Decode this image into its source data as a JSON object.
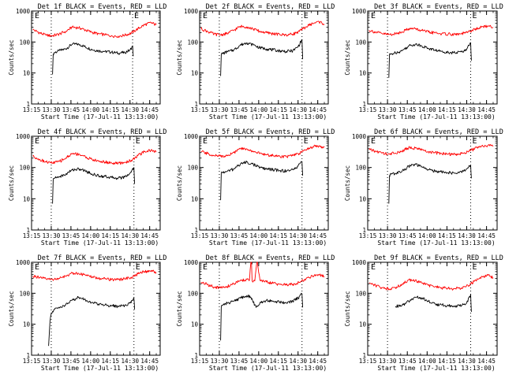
{
  "page": {
    "start_time_label": "Start Time (17-Jul-11 13:13:00)",
    "ylabel": "Counts/sec",
    "marker_label": "E",
    "x_tick_labels": [
      "13:15",
      "13:30",
      "13:45",
      "14:00",
      "14:15",
      "14:30",
      "14:45"
    ],
    "y_tick_labels": [
      "1",
      "10",
      "100",
      "1000"
    ]
  },
  "colors": {
    "events": "#000000",
    "lld": "#ff0000",
    "axis": "#000000",
    "background": "#ffffff"
  },
  "chart_data": [
    {
      "type": "line",
      "title": "Det 1f BLACK = Events, RED = LLD",
      "xlabel": "Start Time (17-Jul-11 13:13:00)",
      "ylabel": "Counts/sec",
      "x_unit": "minutes after 13:13",
      "xlim": [
        2,
        100
      ],
      "ylim": [
        1,
        1000
      ],
      "yscale": "log",
      "markers": [
        {
          "x": 17,
          "label": ""
        },
        {
          "x": 79,
          "label": "E"
        }
      ],
      "series": [
        {
          "name": "Events",
          "color": "#000000",
          "x": [
            18,
            18.5,
            19,
            23,
            28,
            33,
            38,
            43,
            48,
            53,
            58,
            63,
            68,
            73,
            77,
            79,
            79.5
          ],
          "values": [
            9,
            40,
            45,
            52,
            60,
            85,
            85,
            70,
            57,
            52,
            50,
            47,
            44,
            46,
            55,
            75,
            35
          ]
        },
        {
          "name": "LLD",
          "color": "#ff0000",
          "x": [
            3,
            8,
            13,
            18,
            23,
            28,
            33,
            38,
            43,
            48,
            53,
            58,
            63,
            68,
            73,
            78,
            83,
            88,
            93,
            97
          ],
          "values": [
            250,
            200,
            165,
            160,
            180,
            220,
            300,
            290,
            245,
            205,
            185,
            170,
            160,
            155,
            165,
            195,
            270,
            360,
            420,
            360
          ]
        }
      ]
    },
    {
      "type": "line",
      "title": "Det 2f BLACK = Events, RED = LLD",
      "xlabel": "Start Time (17-Jul-11 13:13:00)",
      "ylabel": "Counts/sec",
      "x_unit": "minutes after 13:13",
      "xlim": [
        2,
        100
      ],
      "ylim": [
        1,
        1000
      ],
      "yscale": "log",
      "markers": [
        {
          "x": 17,
          "label": ""
        },
        {
          "x": 80,
          "label": "E"
        }
      ],
      "series": [
        {
          "name": "Events",
          "color": "#000000",
          "x": [
            18,
            18.5,
            19,
            23,
            28,
            33,
            38,
            43,
            48,
            53,
            58,
            63,
            68,
            73,
            77,
            80,
            80.5
          ],
          "values": [
            8,
            38,
            42,
            48,
            55,
            80,
            95,
            80,
            65,
            60,
            56,
            52,
            50,
            52,
            70,
            120,
            28
          ]
        },
        {
          "name": "LLD",
          "color": "#ff0000",
          "x": [
            3,
            8,
            13,
            18,
            23,
            28,
            33,
            38,
            43,
            48,
            53,
            58,
            63,
            68,
            73,
            78,
            83,
            88,
            93,
            97
          ],
          "values": [
            270,
            220,
            180,
            170,
            190,
            240,
            320,
            310,
            260,
            220,
            200,
            185,
            175,
            170,
            180,
            220,
            310,
            400,
            450,
            380
          ]
        }
      ]
    },
    {
      "type": "line",
      "title": "Det 3f BLACK = Events, RED = LLD",
      "xlabel": "Start Time (17-Jul-11 13:13:00)",
      "ylabel": "Counts/sec",
      "x_unit": "minutes after 13:13",
      "xlim": [
        2,
        100
      ],
      "ylim": [
        1,
        1000
      ],
      "yscale": "log",
      "markers": [
        {
          "x": 17,
          "label": ""
        },
        {
          "x": 80,
          "label": "E"
        }
      ],
      "series": [
        {
          "name": "Events",
          "color": "#000000",
          "x": [
            18,
            18.5,
            19,
            23,
            28,
            33,
            38,
            43,
            48,
            53,
            58,
            63,
            68,
            73,
            77,
            80,
            80.5
          ],
          "values": [
            7,
            38,
            40,
            45,
            52,
            75,
            85,
            75,
            62,
            55,
            50,
            47,
            45,
            48,
            60,
            95,
            25
          ]
        },
        {
          "name": "LLD",
          "color": "#ff0000",
          "x": [
            3,
            8,
            13,
            18,
            23,
            28,
            33,
            38,
            43,
            48,
            53,
            58,
            63,
            68,
            73,
            78,
            83,
            88,
            93,
            97
          ],
          "values": [
            240,
            210,
            185,
            175,
            185,
            215,
            270,
            265,
            235,
            210,
            195,
            185,
            180,
            175,
            185,
            210,
            255,
            300,
            330,
            300
          ]
        }
      ]
    },
    {
      "type": "line",
      "title": "Det 4f BLACK = Events, RED = LLD",
      "xlabel": "Start Time (17-Jul-11 13:13:00)",
      "ylabel": "Counts/sec",
      "x_unit": "minutes after 13:13",
      "xlim": [
        2,
        100
      ],
      "ylim": [
        1,
        1000
      ],
      "yscale": "log",
      "markers": [
        {
          "x": 17,
          "label": ""
        },
        {
          "x": 80,
          "label": "E"
        }
      ],
      "series": [
        {
          "name": "Events",
          "color": "#000000",
          "x": [
            18,
            18.5,
            19,
            23,
            28,
            33,
            38,
            43,
            48,
            53,
            58,
            63,
            68,
            73,
            77,
            80,
            80.5
          ],
          "values": [
            7,
            40,
            45,
            50,
            60,
            85,
            90,
            78,
            62,
            55,
            52,
            48,
            46,
            50,
            65,
            100,
            30
          ]
        },
        {
          "name": "LLD",
          "color": "#ff0000",
          "x": [
            3,
            8,
            13,
            18,
            23,
            28,
            33,
            38,
            43,
            48,
            53,
            58,
            63,
            68,
            73,
            78,
            83,
            88,
            93,
            97
          ],
          "values": [
            230,
            185,
            150,
            140,
            155,
            200,
            280,
            270,
            220,
            180,
            160,
            150,
            140,
            135,
            145,
            170,
            240,
            320,
            360,
            310
          ]
        }
      ]
    },
    {
      "type": "line",
      "title": "Det 5f BLACK = Events, RED = LLD",
      "xlabel": "Start Time (17-Jul-11 13:13:00)",
      "ylabel": "Counts/sec",
      "x_unit": "minutes after 13:13",
      "xlim": [
        2,
        100
      ],
      "ylim": [
        1,
        1000
      ],
      "yscale": "log",
      "markers": [
        {
          "x": 17,
          "label": ""
        },
        {
          "x": 80,
          "label": "E"
        }
      ],
      "series": [
        {
          "name": "Events",
          "color": "#000000",
          "x": [
            18,
            18.5,
            19,
            23,
            28,
            33,
            38,
            43,
            48,
            53,
            58,
            63,
            68,
            73,
            77,
            80,
            80.5
          ],
          "values": [
            9,
            65,
            70,
            75,
            90,
            130,
            150,
            125,
            100,
            90,
            85,
            80,
            78,
            85,
            110,
            150,
            55
          ]
        },
        {
          "name": "LLD",
          "color": "#ff0000",
          "x": [
            3,
            8,
            13,
            18,
            23,
            28,
            33,
            38,
            43,
            48,
            53,
            58,
            63,
            68,
            73,
            78,
            83,
            88,
            93,
            97
          ],
          "values": [
            330,
            280,
            240,
            230,
            250,
            300,
            400,
            390,
            330,
            280,
            255,
            240,
            230,
            225,
            240,
            280,
            370,
            460,
            500,
            440
          ]
        }
      ]
    },
    {
      "type": "line",
      "title": "Det 6f BLACK = Events, RED = LLD",
      "xlabel": "Start Time (17-Jul-11 13:13:00)",
      "ylabel": "Counts/sec",
      "x_unit": "minutes after 13:13",
      "xlim": [
        2,
        100
      ],
      "ylim": [
        1,
        1000
      ],
      "yscale": "log",
      "markers": [
        {
          "x": 17,
          "label": ""
        },
        {
          "x": 80,
          "label": "E"
        }
      ],
      "series": [
        {
          "name": "Events",
          "color": "#000000",
          "x": [
            18,
            18.5,
            19,
            23,
            28,
            33,
            38,
            43,
            48,
            53,
            58,
            63,
            68,
            73,
            77,
            80,
            80.5
          ],
          "values": [
            7,
            55,
            60,
            65,
            75,
            110,
            125,
            105,
            85,
            78,
            72,
            68,
            65,
            70,
            90,
            120,
            45
          ]
        },
        {
          "name": "LLD",
          "color": "#ff0000",
          "x": [
            3,
            8,
            13,
            18,
            23,
            28,
            33,
            38,
            43,
            48,
            53,
            58,
            63,
            68,
            73,
            78,
            83,
            88,
            93,
            97
          ],
          "values": [
            380,
            330,
            290,
            275,
            290,
            340,
            430,
            420,
            360,
            320,
            295,
            280,
            270,
            265,
            280,
            320,
            400,
            480,
            520,
            470
          ]
        }
      ]
    },
    {
      "type": "line",
      "title": "Det 7f BLACK = Events, RED = LLD",
      "xlabel": "Start Time (17-Jul-11 13:13:00)",
      "ylabel": "Counts/sec",
      "x_unit": "minutes after 13:13",
      "xlim": [
        2,
        100
      ],
      "ylim": [
        1,
        1000
      ],
      "yscale": "log",
      "markers": [
        {
          "x": 17,
          "label": ""
        },
        {
          "x": 80,
          "label": "E"
        }
      ],
      "series": [
        {
          "name": "Events",
          "color": "#000000",
          "x": [
            15,
            16,
            17,
            19,
            23,
            28,
            33,
            38,
            43,
            48,
            53,
            58,
            63,
            68,
            73,
            77,
            80,
            80.5
          ],
          "values": [
            2,
            12,
            22,
            30,
            35,
            42,
            60,
            75,
            62,
            50,
            45,
            42,
            40,
            38,
            40,
            48,
            70,
            30
          ]
        },
        {
          "name": "LLD",
          "color": "#ff0000",
          "x": [
            3,
            8,
            13,
            18,
            23,
            28,
            33,
            38,
            43,
            48,
            53,
            58,
            63,
            68,
            73,
            78,
            83,
            88,
            93,
            97
          ],
          "values": [
            360,
            320,
            290,
            280,
            300,
            350,
            450,
            440,
            380,
            330,
            305,
            290,
            280,
            275,
            290,
            330,
            420,
            500,
            540,
            480
          ]
        }
      ]
    },
    {
      "type": "line",
      "title": "Det 8f BLACK = Events, RED = LLD",
      "xlabel": "Start Time (17-Jul-11 13:13:00)",
      "ylabel": "Counts/sec",
      "x_unit": "minutes after 13:13",
      "xlim": [
        2,
        100
      ],
      "ylim": [
        1,
        1000
      ],
      "yscale": "log",
      "markers": [
        {
          "x": 17,
          "label": ""
        },
        {
          "x": 80,
          "label": "E"
        }
      ],
      "series": [
        {
          "name": "Events",
          "color": "#000000",
          "x": [
            18,
            18.5,
            19,
            23,
            28,
            33,
            38,
            41,
            45,
            48,
            53,
            58,
            63,
            68,
            73,
            77,
            80,
            80.5
          ],
          "values": [
            3,
            35,
            40,
            48,
            55,
            70,
            85,
            75,
            35,
            50,
            60,
            56,
            52,
            50,
            55,
            70,
            95,
            35
          ]
        },
        {
          "name": "LLD",
          "color": "#ff0000",
          "x": [
            3,
            8,
            13,
            18,
            23,
            28,
            33,
            38,
            40,
            41,
            41.5,
            42,
            44,
            45.5,
            46,
            48,
            53,
            58,
            63,
            68,
            73,
            78,
            83,
            88,
            93,
            97
          ],
          "values": [
            230,
            190,
            160,
            150,
            165,
            200,
            260,
            280,
            260,
            1000,
            1000,
            250,
            250,
            1000,
            1000,
            260,
            230,
            210,
            195,
            185,
            195,
            225,
            290,
            370,
            400,
            340
          ]
        }
      ]
    },
    {
      "type": "line",
      "title": "Det 9f BLACK = Events, RED = LLD",
      "xlabel": "Start Time (17-Jul-11 13:13:00)",
      "ylabel": "Counts/sec",
      "x_unit": "minutes after 13:13",
      "xlim": [
        2,
        100
      ],
      "ylim": [
        1,
        1000
      ],
      "yscale": "log",
      "markers": [
        {
          "x": 17,
          "label": ""
        },
        {
          "x": 80,
          "label": "E"
        }
      ],
      "series": [
        {
          "name": "Events",
          "color": "#000000",
          "x": [
            23,
            28,
            33,
            38,
            43,
            48,
            53,
            58,
            63,
            68,
            73,
            77,
            80,
            80.5
          ],
          "values": [
            38,
            40,
            55,
            75,
            70,
            55,
            45,
            42,
            40,
            38,
            40,
            50,
            90,
            25
          ]
        },
        {
          "name": "LLD",
          "color": "#ff0000",
          "x": [
            3,
            8,
            13,
            18,
            23,
            28,
            33,
            38,
            43,
            48,
            53,
            58,
            63,
            68,
            73,
            78,
            83,
            88,
            93,
            97
          ],
          "values": [
            220,
            180,
            150,
            140,
            155,
            195,
            270,
            260,
            215,
            180,
            160,
            150,
            145,
            140,
            150,
            180,
            250,
            340,
            380,
            320
          ]
        }
      ]
    }
  ]
}
